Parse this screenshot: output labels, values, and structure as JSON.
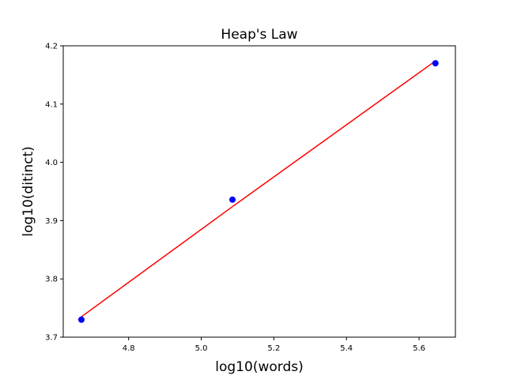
{
  "chart_data": {
    "type": "scatter",
    "title": "Heap's Law",
    "xlabel": "log10(words)",
    "ylabel": "log10(ditinct)",
    "xlim": [
      4.62,
      5.7
    ],
    "ylim": [
      3.7,
      4.2
    ],
    "xticks": [
      "4.8",
      "5.0",
      "5.2",
      "5.4",
      "5.6"
    ],
    "yticks": [
      "3.7",
      "3.8",
      "3.9",
      "4.0",
      "4.1",
      "4.2"
    ],
    "grid": false,
    "legend": "none",
    "series": [
      {
        "type": "scatter",
        "color": "#0000ff",
        "points": [
          {
            "x": 4.67,
            "y": 3.73
          },
          {
            "x": 5.086,
            "y": 3.936
          },
          {
            "x": 5.645,
            "y": 4.17
          }
        ]
      },
      {
        "type": "line",
        "color": "#ff0000",
        "points": [
          {
            "x": 4.67,
            "y": 3.735
          },
          {
            "x": 5.086,
            "y": 3.924
          },
          {
            "x": 5.645,
            "y": 4.174
          }
        ]
      }
    ]
  }
}
